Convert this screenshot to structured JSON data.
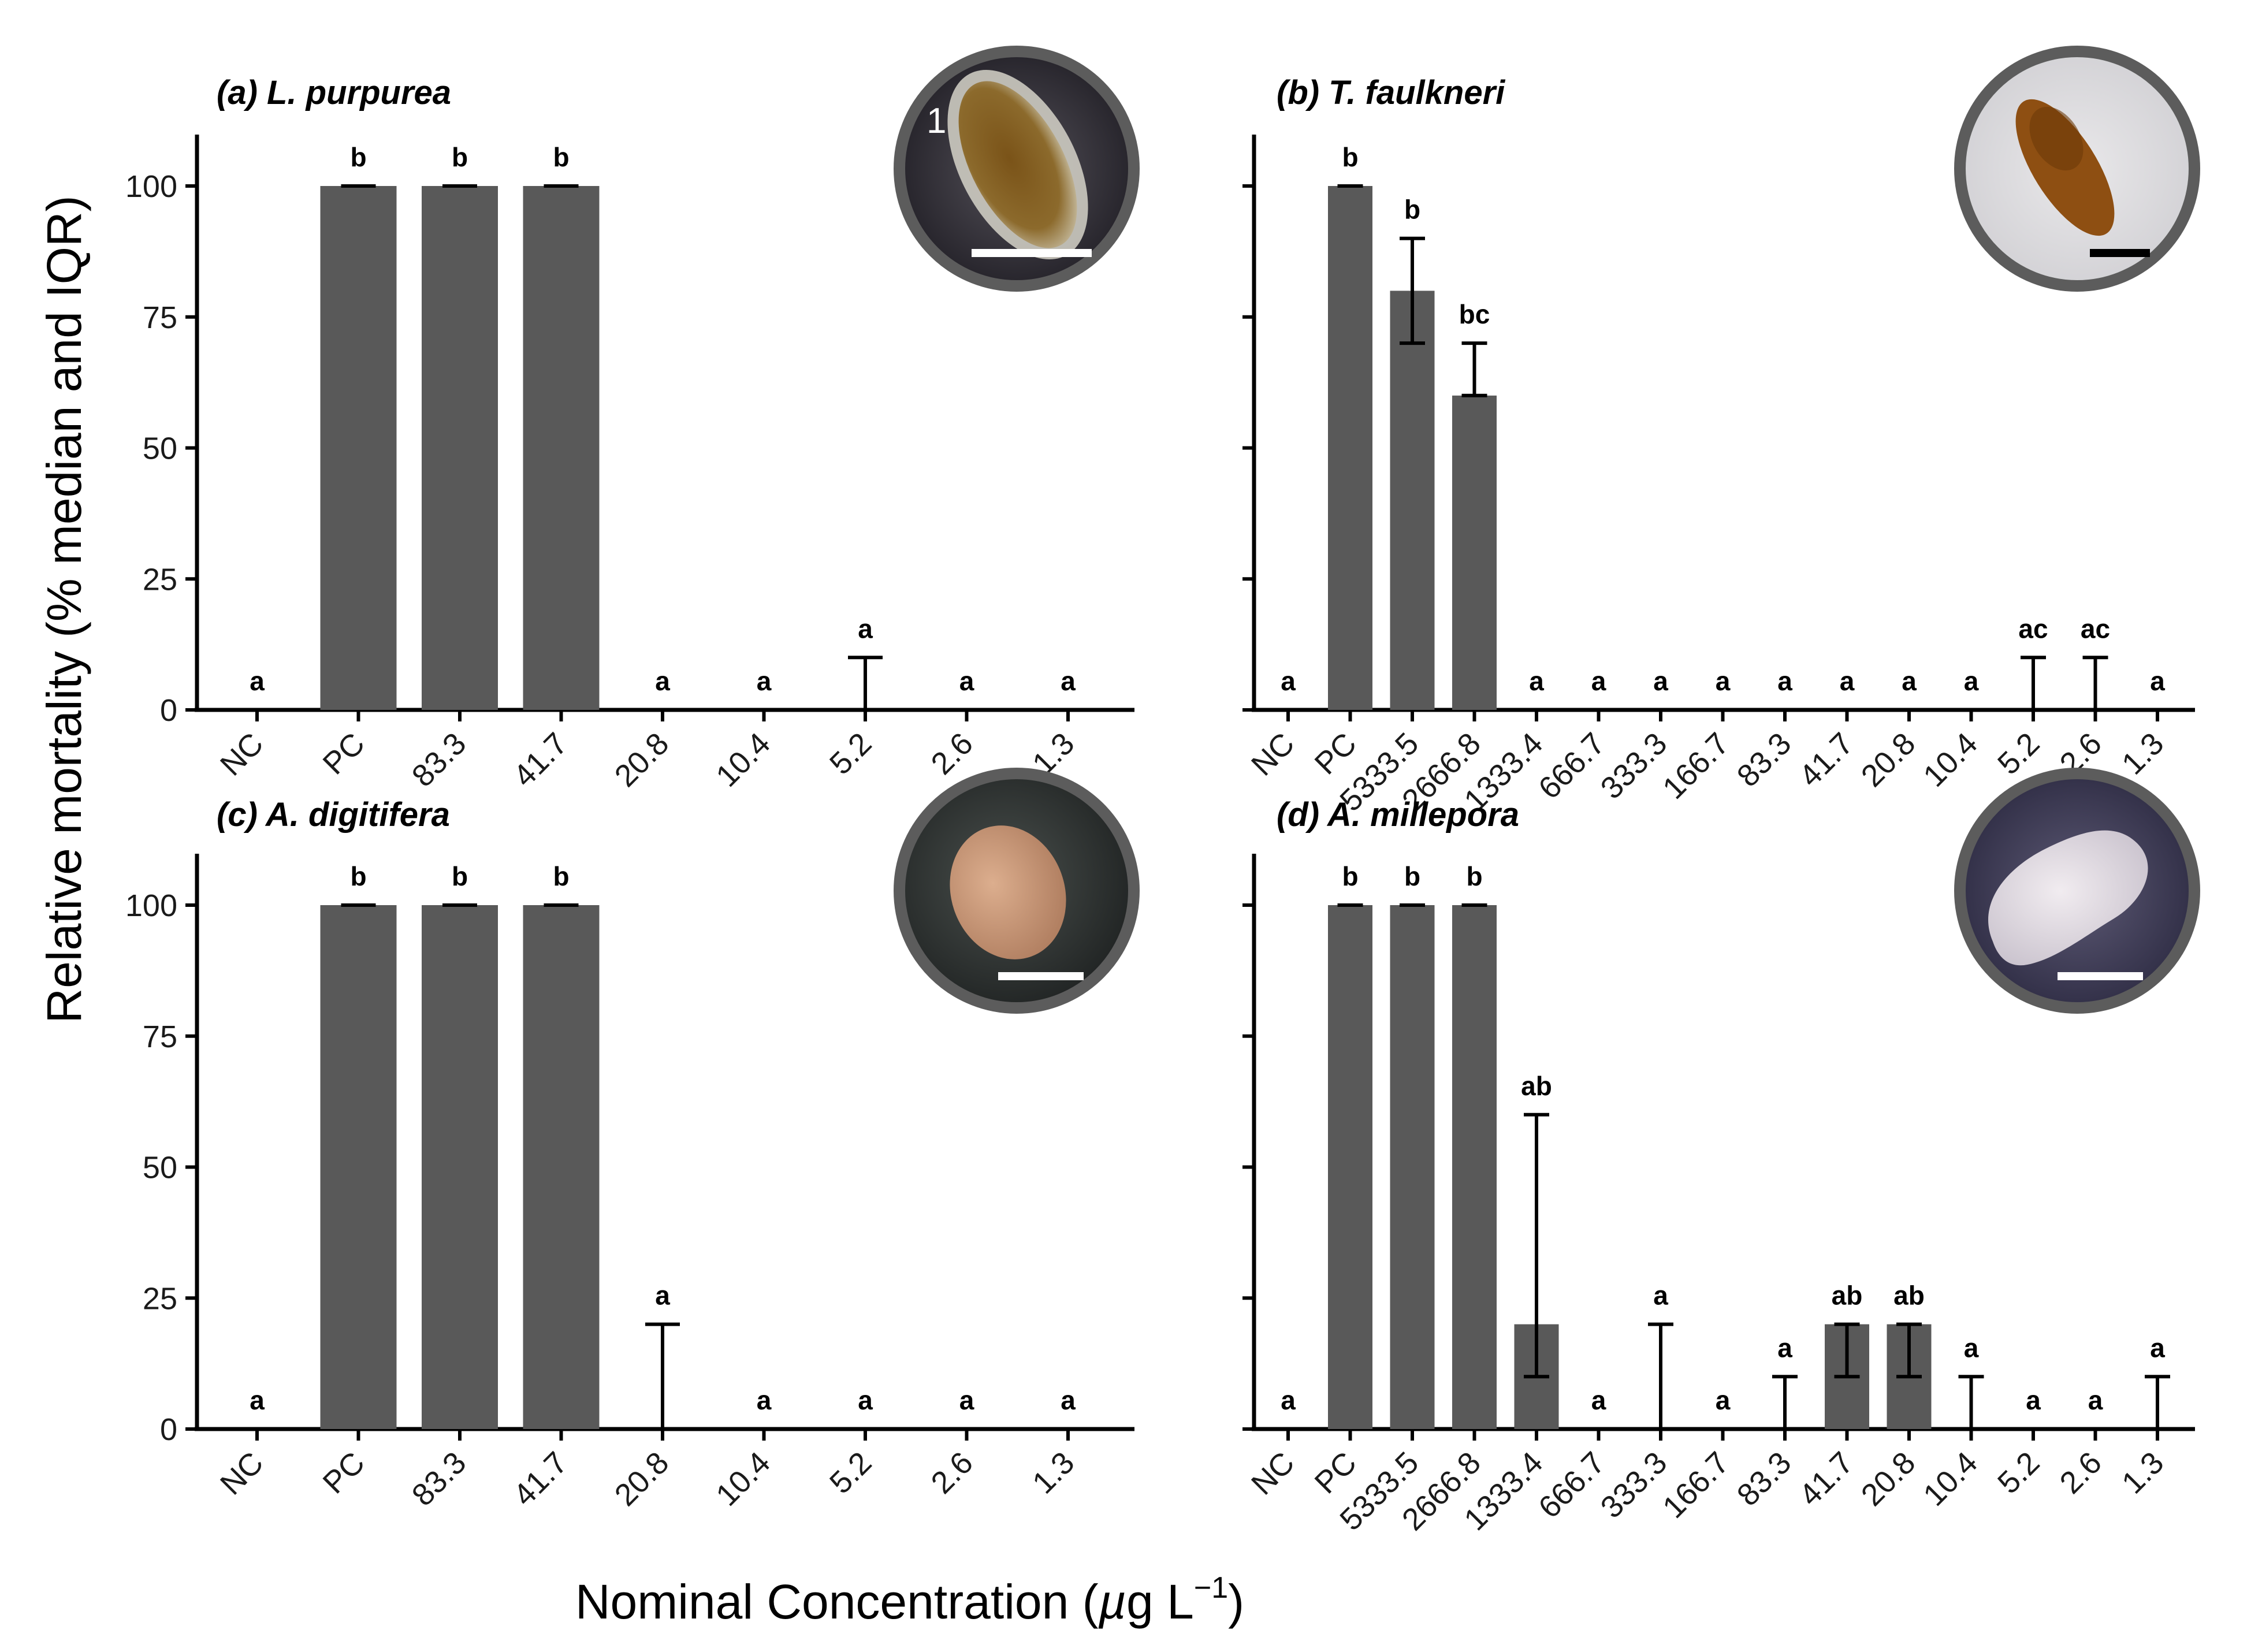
{
  "figure": {
    "ylabel": "Relative mortality (% median and IQR)",
    "xlabel_main": "Nominal Concentration (",
    "xlabel_mu": "µ",
    "xlabel_unit": "g L",
    "xlabel_sup": "−1",
    "xlabel_close": ")",
    "y_ticks": [
      "0",
      "25",
      "50",
      "75",
      "100"
    ],
    "bar_color": "#595959",
    "inset_border_color": "#5c5c5c"
  },
  "chart_data": [
    {
      "id": "a",
      "type": "bar",
      "title": "(a) L. purpurea",
      "ylim": [
        0,
        110
      ],
      "categories": [
        "NC",
        "PC",
        "83.3",
        "41.7",
        "20.8",
        "10.4",
        "5.2",
        "2.6",
        "1.3"
      ],
      "median": [
        0,
        100,
        100,
        100,
        0,
        0,
        0,
        0,
        0
      ],
      "iqr_low": [
        0,
        100,
        100,
        100,
        0,
        0,
        0,
        0,
        0
      ],
      "iqr_high": [
        0,
        100,
        100,
        100,
        0,
        0,
        10,
        0,
        0
      ],
      "letters": [
        "a",
        "b",
        "b",
        "b",
        "a",
        "a",
        "a",
        "a",
        "a"
      ],
      "inset_label": "1"
    },
    {
      "id": "b",
      "type": "bar",
      "title": "(b) T. faulkneri",
      "ylim": [
        0,
        110
      ],
      "categories": [
        "NC",
        "PC",
        "5333.5",
        "2666.8",
        "1333.4",
        "666.7",
        "333.3",
        "166.7",
        "83.3",
        "41.7",
        "20.8",
        "10.4",
        "5.2",
        "2.6",
        "1.3"
      ],
      "median": [
        0,
        100,
        80,
        60,
        0,
        0,
        0,
        0,
        0,
        0,
        0,
        0,
        0,
        0,
        0
      ],
      "iqr_low": [
        0,
        100,
        70,
        60,
        0,
        0,
        0,
        0,
        0,
        0,
        0,
        0,
        0,
        0,
        0
      ],
      "iqr_high": [
        0,
        100,
        90,
        70,
        0,
        0,
        0,
        0,
        0,
        0,
        0,
        0,
        10,
        10,
        0
      ],
      "letters": [
        "a",
        "b",
        "b",
        "bc",
        "a",
        "a",
        "a",
        "a",
        "a",
        "a",
        "a",
        "a",
        "ac",
        "ac",
        "a"
      ]
    },
    {
      "id": "c",
      "type": "bar",
      "title": "(c) A. digitifera",
      "ylim": [
        0,
        110
      ],
      "categories": [
        "NC",
        "PC",
        "83.3",
        "41.7",
        "20.8",
        "10.4",
        "5.2",
        "2.6",
        "1.3"
      ],
      "median": [
        0,
        100,
        100,
        100,
        0,
        0,
        0,
        0,
        0
      ],
      "iqr_low": [
        0,
        100,
        100,
        100,
        0,
        0,
        0,
        0,
        0
      ],
      "iqr_high": [
        0,
        100,
        100,
        100,
        20,
        0,
        0,
        0,
        0
      ],
      "letters": [
        "a",
        "b",
        "b",
        "b",
        "a",
        "a",
        "a",
        "a",
        "a"
      ]
    },
    {
      "id": "d",
      "type": "bar",
      "title": "(d) A. millepora",
      "ylim": [
        0,
        110
      ],
      "categories": [
        "NC",
        "PC",
        "5333.5",
        "2666.8",
        "1333.4",
        "666.7",
        "333.3",
        "166.7",
        "83.3",
        "41.7",
        "20.8",
        "10.4",
        "5.2",
        "2.6",
        "1.3"
      ],
      "median": [
        0,
        100,
        100,
        100,
        20,
        0,
        0,
        0,
        0,
        20,
        20,
        0,
        0,
        0,
        0
      ],
      "iqr_low": [
        0,
        100,
        100,
        100,
        10,
        0,
        0,
        0,
        0,
        10,
        10,
        0,
        0,
        0,
        0
      ],
      "iqr_high": [
        0,
        100,
        100,
        100,
        60,
        0,
        20,
        0,
        10,
        20,
        20,
        10,
        0,
        0,
        10
      ],
      "letters": [
        "a",
        "b",
        "b",
        "b",
        "ab",
        "a",
        "a",
        "a",
        "a",
        "ab",
        "ab",
        "a",
        "a",
        "a",
        "a"
      ]
    }
  ]
}
